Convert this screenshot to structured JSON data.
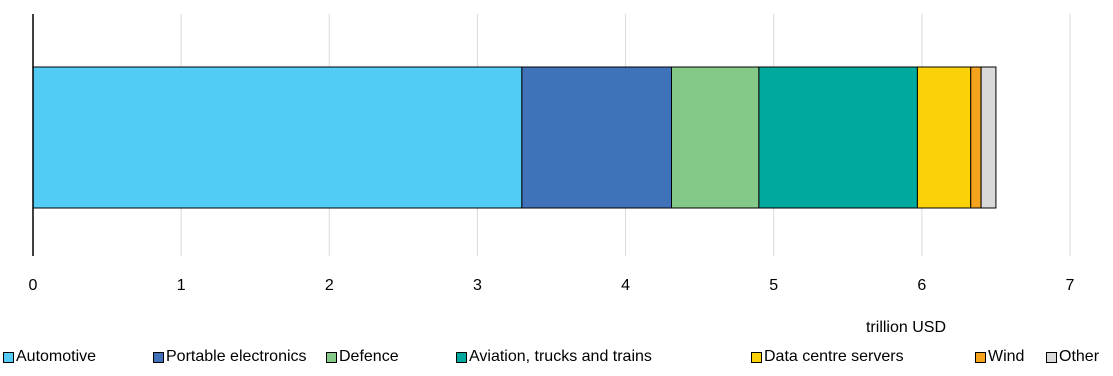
{
  "chart_data": {
    "type": "bar",
    "orientation": "horizontal",
    "stacked": true,
    "x_unit_label": "trillion USD",
    "xlim": [
      0,
      7
    ],
    "x_ticks": [
      "0",
      "1",
      "2",
      "3",
      "4",
      "5",
      "6",
      "7"
    ],
    "grid": true,
    "legend_position": "bottom",
    "series": [
      {
        "name": "Automotive",
        "value": 3.3,
        "color": "#52CBF5"
      },
      {
        "name": "Portable electronics",
        "value": 1.01,
        "color": "#3F72B8"
      },
      {
        "name": "Defence",
        "value": 0.59,
        "color": "#84C988"
      },
      {
        "name": "Aviation, trucks and trains",
        "value": 1.07,
        "color": "#00A99D"
      },
      {
        "name": "Data centre servers",
        "value": 0.36,
        "color": "#FBD207"
      },
      {
        "name": "Wind",
        "value": 0.07,
        "color": "#F5A21C"
      },
      {
        "name": "Other",
        "value": 0.1,
        "color": "#D9D9D9"
      }
    ]
  }
}
